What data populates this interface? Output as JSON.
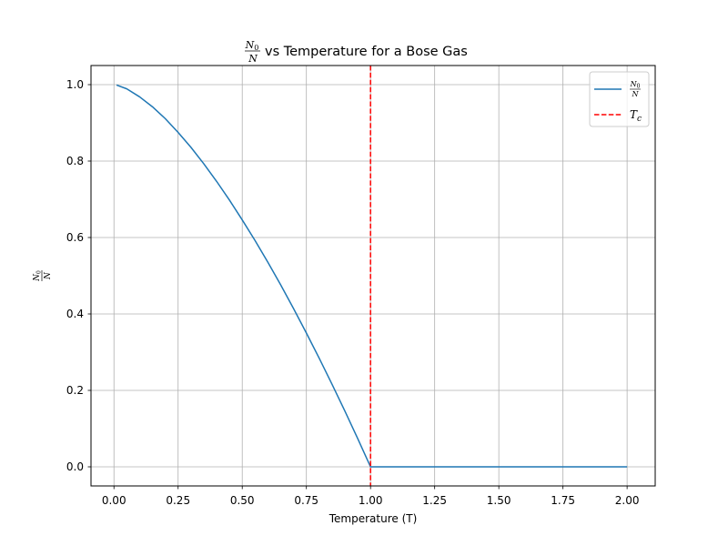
{
  "chart_data": {
    "type": "line",
    "title": {
      "fraction_numerator": "N",
      "fraction_numerator_sub": "0",
      "fraction_denominator": "N",
      "text": "vs Temperature for a Bose Gas"
    },
    "xlabel": "Temperature (T)",
    "ylabel": {
      "fraction_numerator": "N",
      "fraction_numerator_sub": "0",
      "fraction_denominator": "N"
    },
    "xlim": [
      -0.0895,
      2.1095
    ],
    "ylim": [
      -0.05,
      1.05
    ],
    "grid": true,
    "legend_placement": "upper-right",
    "xticks": [
      0.0,
      0.25,
      0.5,
      0.75,
      1.0,
      1.25,
      1.5,
      1.75,
      2.0
    ],
    "xtick_labels": [
      "0.00",
      "0.25",
      "0.50",
      "0.75",
      "1.00",
      "1.25",
      "1.50",
      "1.75",
      "2.00"
    ],
    "yticks": [
      0.0,
      0.2,
      0.4,
      0.6,
      0.8,
      1.0
    ],
    "ytick_labels": [
      "0.0",
      "0.2",
      "0.4",
      "0.6",
      "0.8",
      "1.0"
    ],
    "series": [
      {
        "name": "N0/N",
        "legend": {
          "fraction_numerator": "N",
          "fraction_numerator_sub": "0",
          "fraction_denominator": "N"
        },
        "color": "#1f77b4",
        "style": "solid",
        "x": [
          0.01,
          0.05,
          0.1,
          0.15,
          0.2,
          0.25,
          0.3,
          0.35,
          0.4,
          0.45,
          0.5,
          0.55,
          0.6,
          0.65,
          0.7,
          0.75,
          0.8,
          0.85,
          0.9,
          0.95,
          1.0,
          1.25,
          1.5,
          1.75,
          2.0
        ],
        "y": [
          0.999,
          0.989,
          0.968,
          0.942,
          0.911,
          0.875,
          0.836,
          0.793,
          0.747,
          0.698,
          0.646,
          0.592,
          0.535,
          0.476,
          0.414,
          0.35,
          0.284,
          0.216,
          0.146,
          0.074,
          0.0,
          0.0,
          0.0,
          0.0,
          0.0
        ]
      },
      {
        "name": "Tc",
        "legend": {
          "main": "T",
          "sub": "c"
        },
        "color": "#ff0000",
        "style": "dashed",
        "vertical_x": 1.0
      }
    ]
  }
}
